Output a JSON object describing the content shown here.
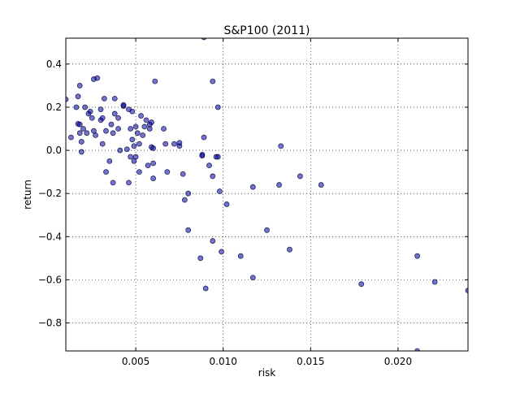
{
  "chart_data": {
    "type": "scatter",
    "title": "S&P100 (2011)",
    "xlabel": "risk",
    "ylabel": "return",
    "xlim": [
      0.001,
      0.024
    ],
    "ylim": [
      -0.93,
      0.52
    ],
    "xticks": [
      {
        "value": 0.005,
        "label": "0.005"
      },
      {
        "value": 0.01,
        "label": "0.010"
      },
      {
        "value": 0.015,
        "label": "0.015"
      },
      {
        "value": 0.02,
        "label": "0.020"
      }
    ],
    "yticks": [
      {
        "value": 0.4,
        "label": "0.4"
      },
      {
        "value": 0.2,
        "label": "0.2"
      },
      {
        "value": 0.0,
        "label": "0.0"
      },
      {
        "value": -0.2,
        "label": "−0.2"
      },
      {
        "value": -0.4,
        "label": "−0.4"
      },
      {
        "value": -0.6,
        "label": "−0.6"
      },
      {
        "value": -0.8,
        "label": "−0.8"
      }
    ],
    "grid": true,
    "marker_color": "#0000aa",
    "points": [
      [
        0.0089,
        0.524
      ],
      [
        0.001,
        0.236
      ],
      [
        0.0013,
        0.06
      ],
      [
        0.0016,
        0.2
      ],
      [
        0.0017,
        0.25
      ],
      [
        0.0018,
        0.3
      ],
      [
        0.0017,
        0.123
      ],
      [
        0.0018,
        0.12
      ],
      [
        0.0018,
        0.08
      ],
      [
        0.0019,
        0.04
      ],
      [
        0.0019,
        -0.007
      ],
      [
        0.002,
        0.1
      ],
      [
        0.0021,
        0.2
      ],
      [
        0.0022,
        0.08
      ],
      [
        0.0023,
        0.17
      ],
      [
        0.0024,
        0.18
      ],
      [
        0.0025,
        0.15
      ],
      [
        0.0026,
        0.09
      ],
      [
        0.0026,
        0.33
      ],
      [
        0.0027,
        0.07
      ],
      [
        0.0028,
        0.335
      ],
      [
        0.003,
        0.14
      ],
      [
        0.003,
        0.19
      ],
      [
        0.0031,
        0.03
      ],
      [
        0.0031,
        0.15
      ],
      [
        0.0032,
        0.24
      ],
      [
        0.0033,
        0.09
      ],
      [
        0.0033,
        -0.1
      ],
      [
        0.0035,
        -0.05
      ],
      [
        0.0036,
        0.12
      ],
      [
        0.0037,
        0.08
      ],
      [
        0.0037,
        -0.15
      ],
      [
        0.0038,
        0.24
      ],
      [
        0.0038,
        0.17
      ],
      [
        0.004,
        0.1
      ],
      [
        0.004,
        0.15
      ],
      [
        0.0041,
        0.0
      ],
      [
        0.0043,
        0.205
      ],
      [
        0.0043,
        0.21
      ],
      [
        0.0045,
        0.005
      ],
      [
        0.0046,
        0.19
      ],
      [
        0.0046,
        -0.15
      ],
      [
        0.0047,
        -0.03
      ],
      [
        0.0047,
        0.1
      ],
      [
        0.0048,
        0.18
      ],
      [
        0.0048,
        0.05
      ],
      [
        0.0049,
        -0.05
      ],
      [
        0.0049,
        0.02
      ],
      [
        0.005,
        -0.03
      ],
      [
        0.005,
        0.11
      ],
      [
        0.0051,
        0.08
      ],
      [
        0.0052,
        0.03
      ],
      [
        0.0052,
        -0.1
      ],
      [
        0.0053,
        0.16
      ],
      [
        0.0054,
        0.07
      ],
      [
        0.0055,
        0.11
      ],
      [
        0.0056,
        0.14
      ],
      [
        0.0057,
        -0.07
      ],
      [
        0.0058,
        0.1
      ],
      [
        0.0058,
        0.12
      ],
      [
        0.0059,
        0.13
      ],
      [
        0.0059,
        0.015
      ],
      [
        0.006,
        0.01
      ],
      [
        0.006,
        -0.06
      ],
      [
        0.006,
        -0.13
      ],
      [
        0.0061,
        0.32
      ],
      [
        0.0066,
        0.1
      ],
      [
        0.0067,
        0.03
      ],
      [
        0.0068,
        -0.1
      ],
      [
        0.0072,
        0.03
      ],
      [
        0.0075,
        0.02
      ],
      [
        0.0075,
        0.035
      ],
      [
        0.0077,
        -0.11
      ],
      [
        0.0078,
        -0.23
      ],
      [
        0.008,
        -0.2
      ],
      [
        0.008,
        -0.37
      ],
      [
        0.0087,
        -0.5
      ],
      [
        0.0088,
        -0.02
      ],
      [
        0.0088,
        -0.025
      ],
      [
        0.0089,
        0.06
      ],
      [
        0.009,
        -0.64
      ],
      [
        0.0092,
        -0.07
      ],
      [
        0.0094,
        0.32
      ],
      [
        0.0094,
        -0.12
      ],
      [
        0.0094,
        -0.42
      ],
      [
        0.0096,
        -0.03
      ],
      [
        0.0097,
        0.2
      ],
      [
        0.0097,
        -0.03
      ],
      [
        0.0098,
        -0.19
      ],
      [
        0.0099,
        -0.47
      ],
      [
        0.0102,
        -0.25
      ],
      [
        0.011,
        -0.49
      ],
      [
        0.0117,
        -0.17
      ],
      [
        0.0117,
        -0.59
      ],
      [
        0.0125,
        -0.37
      ],
      [
        0.0132,
        -0.16
      ],
      [
        0.0133,
        0.02
      ],
      [
        0.0138,
        -0.46
      ],
      [
        0.0144,
        -0.12
      ],
      [
        0.0156,
        -0.16
      ],
      [
        0.0179,
        -0.62
      ],
      [
        0.0211,
        -0.49
      ],
      [
        0.0211,
        -0.93
      ],
      [
        0.0221,
        -0.61
      ],
      [
        0.024,
        -0.65
      ]
    ]
  }
}
